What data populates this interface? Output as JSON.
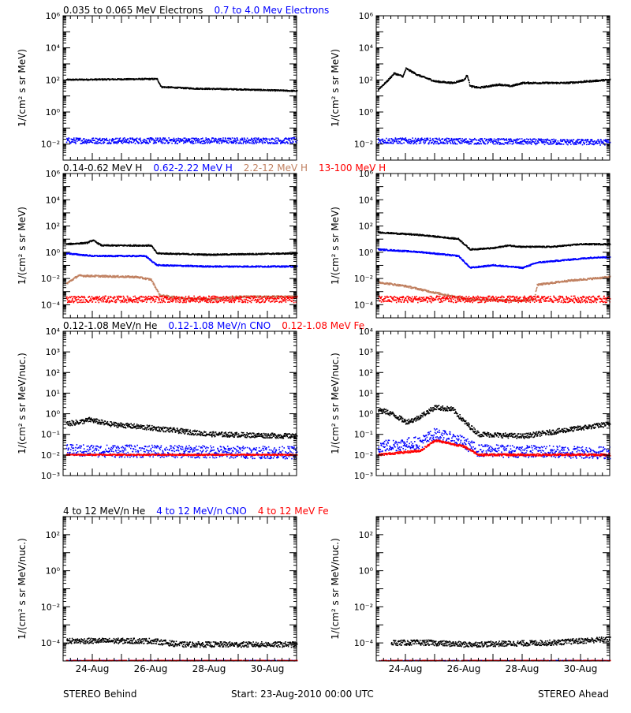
{
  "colors": {
    "black": "#000000",
    "blue": "#0000ff",
    "tan": "#c08060",
    "red": "#ff0000"
  },
  "footer": {
    "left": "STEREO Behind",
    "center": "Start: 23-Aug-2010 00:00 UTC",
    "right": "STEREO Ahead"
  },
  "x_ticks": [
    "24-Aug",
    "26-Aug",
    "28-Aug",
    "30-Aug"
  ],
  "chart_data": [
    {
      "type": "scatter",
      "row": 0,
      "side": "left",
      "ylabel": "1/(cm² s sr MeV)",
      "yscale": "log",
      "ylim_exp": [
        -3,
        6
      ],
      "yticks": [
        {
          "exp": -2,
          "label": "10⁻²"
        },
        {
          "exp": 0,
          "label": "10⁰"
        },
        {
          "exp": 2,
          "label": "10²"
        },
        {
          "exp": 4,
          "label": "10⁴"
        },
        {
          "exp": 6,
          "label": "10⁶"
        }
      ],
      "xlim_days": [
        0,
        8
      ],
      "legend": [
        {
          "name": "0.035 to 0.065 MeV Electrons",
          "color": "#000000"
        },
        {
          "name": "0.7 to 4.0 Mev Electrons",
          "color": "#0000ff"
        }
      ],
      "series": [
        {
          "name": "0.035 to 0.065 MeV Electrons",
          "color": "#000000",
          "jitter": 0.04,
          "points": [
            [
              0.1,
              2.0
            ],
            [
              3.2,
              2.05
            ],
            [
              3.35,
              1.55
            ],
            [
              4.5,
              1.45
            ],
            [
              6.0,
              1.4
            ],
            [
              8.0,
              1.3
            ]
          ]
        },
        {
          "name": "0.7 to 4.0 Mev Electrons",
          "color": "#0000ff",
          "jitter": 0.18,
          "points": [
            [
              0.1,
              -1.8
            ],
            [
              8.0,
              -1.8
            ]
          ]
        }
      ]
    },
    {
      "type": "scatter",
      "row": 0,
      "side": "right",
      "ylabel": "1/(cm² s sr MeV)",
      "yscale": "log",
      "ylim_exp": [
        -3,
        6
      ],
      "yticks": [
        {
          "exp": -2,
          "label": "10⁻²"
        },
        {
          "exp": 0,
          "label": "10⁰"
        },
        {
          "exp": 2,
          "label": "10²"
        },
        {
          "exp": 4,
          "label": "10⁴"
        },
        {
          "exp": 6,
          "label": "10⁶"
        }
      ],
      "xlim_days": [
        0,
        8
      ],
      "legend": [],
      "series": [
        {
          "name": "0.035 to 0.065 MeV Electrons",
          "color": "#000000",
          "jitter": 0.05,
          "points": [
            [
              0.05,
              1.4
            ],
            [
              0.35,
              1.9
            ],
            [
              0.6,
              2.4
            ],
            [
              0.9,
              2.2
            ],
            [
              1.0,
              2.7
            ],
            [
              1.4,
              2.3
            ],
            [
              2.0,
              1.9
            ],
            [
              2.6,
              1.8
            ],
            [
              3.0,
              2.0
            ],
            [
              3.1,
              2.3
            ],
            [
              3.2,
              1.6
            ],
            [
              3.5,
              1.5
            ],
            [
              4.2,
              1.7
            ],
            [
              4.6,
              1.6
            ],
            [
              5.0,
              1.8
            ],
            [
              6.5,
              1.8
            ],
            [
              8.0,
              2.0
            ]
          ]
        },
        {
          "name": "0.7 to 4.0 Mev Electrons",
          "color": "#0000ff",
          "jitter": 0.18,
          "points": [
            [
              0.05,
              -1.8
            ],
            [
              8.0,
              -1.9
            ]
          ]
        }
      ]
    },
    {
      "type": "scatter",
      "row": 1,
      "side": "left",
      "ylabel": "1/(cm² s sr MeV)",
      "yscale": "log",
      "ylim_exp": [
        -5,
        6
      ],
      "yticks": [
        {
          "exp": -4,
          "label": "10⁻⁴"
        },
        {
          "exp": -2,
          "label": "10⁻²"
        },
        {
          "exp": 0,
          "label": "10⁰"
        },
        {
          "exp": 2,
          "label": "10²"
        },
        {
          "exp": 4,
          "label": "10⁴"
        },
        {
          "exp": 6,
          "label": "10⁶"
        }
      ],
      "xlim_days": [
        0,
        8
      ],
      "legend": [
        {
          "name": "0.14-0.62 MeV H",
          "color": "#000000"
        },
        {
          "name": "0.62-2.22 MeV H",
          "color": "#0000ff"
        },
        {
          "name": "2.2-12 MeV H",
          "color": "#c08060"
        },
        {
          "name": "13-100 MeV H",
          "color": "#ff0000"
        }
      ],
      "series": [
        {
          "name": "0.14-0.62 MeV H",
          "color": "#000000",
          "jitter": 0.05,
          "points": [
            [
              0.1,
              0.6
            ],
            [
              0.8,
              0.7
            ],
            [
              1.0,
              0.9
            ],
            [
              1.3,
              0.5
            ],
            [
              3.0,
              0.5
            ],
            [
              3.2,
              -0.1
            ],
            [
              5.0,
              -0.2
            ],
            [
              8.0,
              -0.1
            ]
          ]
        },
        {
          "name": "0.62-2.22 MeV H",
          "color": "#0000ff",
          "jitter": 0.05,
          "points": [
            [
              0.1,
              -0.1
            ],
            [
              1.0,
              -0.3
            ],
            [
              2.8,
              -0.3
            ],
            [
              3.2,
              -1.0
            ],
            [
              5.0,
              -1.1
            ],
            [
              8.0,
              -1.1
            ]
          ]
        },
        {
          "name": "2.2-12 MeV H",
          "color": "#c08060",
          "jitter": 0.07,
          "points": [
            [
              0.1,
              -2.4
            ],
            [
              0.5,
              -1.8
            ],
            [
              2.5,
              -1.9
            ],
            [
              3.0,
              -2.1
            ],
            [
              3.3,
              -3.3
            ],
            [
              4.0,
              -3.5
            ],
            [
              5.0,
              -3.6
            ],
            [
              6.0,
              -3.4
            ],
            [
              8.0,
              -3.4
            ]
          ]
        },
        {
          "name": "13-100 MeV H",
          "color": "#ff0000",
          "jitter": 0.25,
          "points": [
            [
              0.1,
              -3.6
            ],
            [
              8.0,
              -3.6
            ]
          ]
        }
      ]
    },
    {
      "type": "scatter",
      "row": 1,
      "side": "right",
      "ylabel": "1/(cm² s sr MeV)",
      "yscale": "log",
      "ylim_exp": [
        -5,
        6
      ],
      "yticks": [
        {
          "exp": -4,
          "label": "10⁻⁴"
        },
        {
          "exp": -2,
          "label": "10⁻²"
        },
        {
          "exp": 0,
          "label": "10⁰"
        },
        {
          "exp": 2,
          "label": "10²"
        },
        {
          "exp": 4,
          "label": "10⁴"
        },
        {
          "exp": 6,
          "label": "10⁶"
        }
      ],
      "xlim_days": [
        0,
        8
      ],
      "legend": [],
      "series": [
        {
          "name": "0.14-0.62 MeV H",
          "color": "#000000",
          "jitter": 0.05,
          "points": [
            [
              0.05,
              1.5
            ],
            [
              1.5,
              1.3
            ],
            [
              2.8,
              1.0
            ],
            [
              3.2,
              0.2
            ],
            [
              4.0,
              0.3
            ],
            [
              4.5,
              0.5
            ],
            [
              5.0,
              0.4
            ],
            [
              6.0,
              0.4
            ],
            [
              7.0,
              0.6
            ],
            [
              8.0,
              0.6
            ]
          ]
        },
        {
          "name": "0.62-2.22 MeV H",
          "color": "#0000ff",
          "jitter": 0.05,
          "points": [
            [
              0.05,
              0.2
            ],
            [
              1.5,
              0.0
            ],
            [
              2.8,
              -0.3
            ],
            [
              3.2,
              -1.2
            ],
            [
              4.0,
              -1.0
            ],
            [
              5.0,
              -1.2
            ],
            [
              5.5,
              -0.8
            ],
            [
              6.5,
              -0.6
            ],
            [
              7.5,
              -0.4
            ],
            [
              8.0,
              -0.4
            ]
          ]
        },
        {
          "name": "2.2-12 MeV H",
          "color": "#c08060",
          "jitter": 0.07,
          "points": [
            [
              0.05,
              -2.3
            ],
            [
              1.0,
              -2.6
            ],
            [
              2.0,
              -3.1
            ],
            [
              2.9,
              -3.5
            ],
            [
              3.1,
              -3.6
            ],
            [
              5.0,
              -3.7
            ],
            [
              5.4,
              -3.6
            ],
            [
              5.5,
              -2.5
            ],
            [
              6.5,
              -2.2
            ],
            [
              8.0,
              -1.9
            ]
          ]
        },
        {
          "name": "13-100 MeV H",
          "color": "#ff0000",
          "jitter": 0.25,
          "points": [
            [
              0.05,
              -3.6
            ],
            [
              8.0,
              -3.6
            ]
          ]
        }
      ]
    },
    {
      "type": "scatter",
      "row": 2,
      "side": "left",
      "ylabel": "1/(cm² s sr MeV/nuc.)",
      "yscale": "log",
      "ylim_exp": [
        -3,
        4
      ],
      "yticks": [
        {
          "exp": -3,
          "label": "10⁻³"
        },
        {
          "exp": -2,
          "label": "10⁻²"
        },
        {
          "exp": -1,
          "label": "10⁻¹"
        },
        {
          "exp": 0,
          "label": "10⁰"
        },
        {
          "exp": 1,
          "label": "10¹"
        },
        {
          "exp": 2,
          "label": "10²"
        },
        {
          "exp": 3,
          "label": "10³"
        },
        {
          "exp": 4,
          "label": "10⁴"
        }
      ],
      "xlim_days": [
        0,
        8
      ],
      "legend": [
        {
          "name": "0.12-1.08 MeV/n He",
          "color": "#000000"
        },
        {
          "name": "0.12-1.08 MeV/n CNO",
          "color": "#0000ff"
        },
        {
          "name": "0.12-1.08 MeV Fe",
          "color": "#ff0000"
        }
      ],
      "series": [
        {
          "name": "0.12-1.08 MeV/n He",
          "color": "#000000",
          "jitter": 0.12,
          "points": [
            [
              0.1,
              -0.5
            ],
            [
              0.6,
              -0.4
            ],
            [
              0.9,
              -0.3
            ],
            [
              1.5,
              -0.5
            ],
            [
              3.0,
              -0.7
            ],
            [
              5.0,
              -1.0
            ],
            [
              8.0,
              -1.1
            ]
          ]
        },
        {
          "name": "0.12-1.08 MeV/n CNO",
          "color": "#0000ff",
          "jitter": 0.3,
          "points": [
            [
              0.1,
              -1.8
            ],
            [
              8.0,
              -1.9
            ]
          ]
        },
        {
          "name": "0.12-1.08 MeV Fe",
          "color": "#ff0000",
          "jitter": 0.03,
          "points": [
            [
              0.1,
              -2.0
            ],
            [
              8.0,
              -2.0
            ]
          ]
        }
      ]
    },
    {
      "type": "scatter",
      "row": 2,
      "side": "right",
      "ylabel": "1/(cm² s sr MeV/nuc.)",
      "yscale": "log",
      "ylim_exp": [
        -3,
        4
      ],
      "yticks": [
        {
          "exp": -3,
          "label": "10⁻³"
        },
        {
          "exp": -2,
          "label": "10⁻²"
        },
        {
          "exp": -1,
          "label": "10⁻¹"
        },
        {
          "exp": 0,
          "label": "10⁰"
        },
        {
          "exp": 1,
          "label": "10¹"
        },
        {
          "exp": 2,
          "label": "10²"
        },
        {
          "exp": 3,
          "label": "10³"
        },
        {
          "exp": 4,
          "label": "10⁴"
        }
      ],
      "xlim_days": [
        0,
        8
      ],
      "legend": [],
      "series": [
        {
          "name": "0.12-1.08 MeV/n He",
          "color": "#000000",
          "jitter": 0.12,
          "points": [
            [
              0.05,
              0.2
            ],
            [
              0.5,
              0.0
            ],
            [
              1.0,
              -0.4
            ],
            [
              1.3,
              -0.3
            ],
            [
              2.0,
              0.3
            ],
            [
              2.6,
              0.2
            ],
            [
              3.0,
              -0.4
            ],
            [
              3.5,
              -1.0
            ],
            [
              5.0,
              -1.1
            ],
            [
              6.5,
              -0.8
            ],
            [
              8.0,
              -0.5
            ]
          ]
        },
        {
          "name": "0.12-1.08 MeV/n CNO",
          "color": "#0000ff",
          "jitter": 0.3,
          "points": [
            [
              0.05,
              -1.6
            ],
            [
              1.5,
              -1.4
            ],
            [
              2.0,
              -1.0
            ],
            [
              2.8,
              -1.3
            ],
            [
              3.5,
              -1.8
            ],
            [
              8.0,
              -1.9
            ]
          ]
        },
        {
          "name": "0.12-1.08 MeV Fe",
          "color": "#ff0000",
          "jitter": 0.05,
          "points": [
            [
              0.05,
              -2.0
            ],
            [
              1.5,
              -1.8
            ],
            [
              2.0,
              -1.3
            ],
            [
              3.0,
              -1.6
            ],
            [
              3.5,
              -2.0
            ],
            [
              8.0,
              -2.0
            ]
          ]
        }
      ]
    },
    {
      "type": "scatter",
      "row": 3,
      "side": "left",
      "ylabel": "1/(cm² s sr MeV/nuc.)",
      "yscale": "log",
      "ylim_exp": [
        -5,
        3
      ],
      "yticks": [
        {
          "exp": -4,
          "label": "10⁻⁴"
        },
        {
          "exp": -2,
          "label": "10⁻²"
        },
        {
          "exp": 0,
          "label": "10⁰"
        },
        {
          "exp": 2,
          "label": "10²"
        }
      ],
      "xlim_days": [
        0,
        8
      ],
      "legend": [
        {
          "name": "4 to 12 MeV/n He",
          "color": "#000000"
        },
        {
          "name": "4 to 12 MeV/n CNO",
          "color": "#0000ff"
        },
        {
          "name": "4 to 12 MeV Fe",
          "color": "#ff0000"
        }
      ],
      "series": [
        {
          "name": "4 to 12 MeV/n He",
          "color": "#000000",
          "jitter": 0.15,
          "points": [
            [
              0.1,
              -3.9
            ],
            [
              3.0,
              -3.9
            ],
            [
              4.0,
              -4.1
            ],
            [
              8.0,
              -4.1
            ]
          ]
        },
        {
          "name": "4 to 12 MeV/n CNO",
          "color": "#0000ff",
          "jitter": 0.02,
          "points": [
            [
              0.1,
              -5.0
            ],
            [
              8.0,
              -5.0
            ]
          ]
        },
        {
          "name": "4 to 12 MeV Fe",
          "color": "#ff0000",
          "jitter": 0.02,
          "points": [
            [
              0.1,
              -5.0
            ],
            [
              8.0,
              -5.0
            ]
          ]
        }
      ]
    },
    {
      "type": "scatter",
      "row": 3,
      "side": "right",
      "ylabel": "1/(cm² s sr MeV/nuc.)",
      "yscale": "log",
      "ylim_exp": [
        -5,
        3
      ],
      "yticks": [
        {
          "exp": -4,
          "label": "10⁻⁴"
        },
        {
          "exp": -2,
          "label": "10⁻²"
        },
        {
          "exp": 0,
          "label": "10⁰"
        },
        {
          "exp": 2,
          "label": "10²"
        }
      ],
      "xlim_days": [
        0,
        8
      ],
      "legend": [],
      "series": [
        {
          "name": "4 to 12 MeV/n He",
          "color": "#000000",
          "jitter": 0.15,
          "points": [
            [
              0.5,
              -4.0
            ],
            [
              1.8,
              -4.0
            ],
            [
              3.0,
              -4.1
            ],
            [
              6.0,
              -4.0
            ],
            [
              8.0,
              -3.8
            ]
          ]
        },
        {
          "name": "4 to 12 MeV/n CNO",
          "color": "#0000ff",
          "jitter": 0.02,
          "points": [
            [
              0.1,
              -5.0
            ],
            [
              8.0,
              -5.0
            ]
          ]
        },
        {
          "name": "4 to 12 MeV Fe",
          "color": "#ff0000",
          "jitter": 0.02,
          "points": [
            [
              0.1,
              -5.0
            ],
            [
              8.0,
              -5.0
            ]
          ]
        }
      ]
    }
  ]
}
